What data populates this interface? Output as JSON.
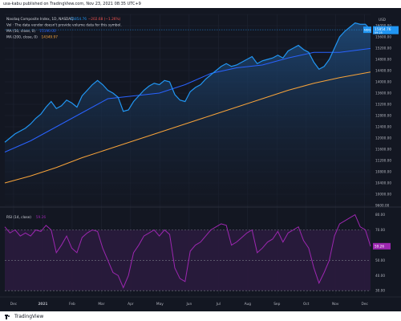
{
  "caption": "usa-kabu published on TradingView.com, Nov 23, 2021 08:35 UTC+9",
  "footer": {
    "brand": "TradingView",
    "logo_icon": "tradingview-logo-icon"
  },
  "colors": {
    "background": "#131722",
    "price_line": "#2196F3",
    "price_fill": "#1E3A5F",
    "ma50": "#2962FF",
    "ma200": "#F7A33A",
    "rsi_line": "#9C27B0",
    "rsi_band": "#2A1B3D",
    "text": "#D1D4DC",
    "tick_text": "#B2B5BE",
    "grid": "#1F2433"
  },
  "chart_data": [
    {
      "type": "area",
      "legend": [
        {
          "text": "Nasdaq Composite Index, 1D, NASDAQ",
          "values": [
            {
              "text": "15854.76",
              "color": "#2196F3"
            },
            {
              "text": "−202.68 (−1.26%)",
              "color": "#EF5350"
            }
          ]
        },
        {
          "text": "Vol · The data vendor doesn't provide volume data for this symbol.",
          "values": []
        },
        {
          "text": "MA (50, close, 0)",
          "values": [
            {
              "text": "15190.00",
              "color": "#2962FF"
            }
          ]
        },
        {
          "text": "MA (200, close, 0)",
          "values": [
            {
              "text": "14349.97",
              "color": "#F7A33A"
            }
          ]
        }
      ],
      "x_labels": [
        "Dec",
        "2021",
        "Feb",
        "Mar",
        "Apr",
        "May",
        "Jun",
        "Jul",
        "Aug",
        "Sep",
        "Oct",
        "Nov",
        "Dec"
      ],
      "y_ticks": [
        9600,
        10000,
        10400,
        10800,
        11200,
        11600,
        12000,
        12400,
        12800,
        13200,
        13600,
        14000,
        14400,
        14800,
        15200,
        15600,
        16000,
        16400
      ],
      "y_tick_labels": [
        "9600.00",
        "10000.00",
        "10400.00",
        "10800.00",
        "11200.00",
        "11600.00",
        "12000.00",
        "12400.00",
        "12800.00",
        "13200.00",
        "13600.00",
        "14000.00",
        "14400.00",
        "14800.00",
        "15200.00",
        "15600.00",
        "16000.00",
        "16400.00"
      ],
      "ylim": [
        9600,
        16400
      ],
      "currency": "USD",
      "last_price_label": "15854.76",
      "last_price_sublabel": "NDQ",
      "secondary_label": "09:25",
      "series": [
        {
          "name": "Nasdaq Composite Index",
          "color": "#2196F3",
          "points": [
            [
              0,
              11850
            ],
            [
              2,
              12000
            ],
            [
              4,
              12150
            ],
            [
              6,
              12250
            ],
            [
              8,
              12350
            ],
            [
              10,
              12500
            ],
            [
              12,
              12700
            ],
            [
              14,
              12850
            ],
            [
              16,
              13100
            ],
            [
              18,
              13300
            ],
            [
              20,
              13050
            ],
            [
              22,
              13150
            ],
            [
              24,
              13350
            ],
            [
              26,
              13250
            ],
            [
              28,
              13100
            ],
            [
              30,
              13500
            ],
            [
              32,
              13700
            ],
            [
              34,
              13900
            ],
            [
              36,
              14050
            ],
            [
              38,
              13900
            ],
            [
              40,
              13700
            ],
            [
              42,
              13600
            ],
            [
              44,
              13450
            ],
            [
              46,
              12950
            ],
            [
              48,
              13000
            ],
            [
              50,
              13300
            ],
            [
              52,
              13500
            ],
            [
              54,
              13700
            ],
            [
              56,
              13850
            ],
            [
              58,
              13950
            ],
            [
              60,
              13900
            ],
            [
              62,
              14050
            ],
            [
              64,
              14000
            ],
            [
              66,
              13550
            ],
            [
              68,
              13350
            ],
            [
              70,
              13300
            ],
            [
              72,
              13650
            ],
            [
              74,
              13800
            ],
            [
              76,
              13900
            ],
            [
              78,
              14100
            ],
            [
              80,
              14250
            ],
            [
              82,
              14400
            ],
            [
              84,
              14550
            ],
            [
              86,
              14650
            ],
            [
              88,
              14550
            ],
            [
              90,
              14600
            ],
            [
              92,
              14700
            ],
            [
              94,
              14800
            ],
            [
              96,
              14900
            ],
            [
              98,
              14650
            ],
            [
              100,
              14750
            ],
            [
              102,
              14800
            ],
            [
              104,
              14850
            ],
            [
              106,
              14950
            ],
            [
              108,
              14850
            ],
            [
              110,
              15100
            ],
            [
              112,
              15200
            ],
            [
              114,
              15300
            ],
            [
              116,
              15150
            ],
            [
              118,
              15050
            ],
            [
              120,
              14700
            ],
            [
              122,
              14450
            ],
            [
              124,
              14550
            ],
            [
              126,
              14800
            ],
            [
              128,
              15200
            ],
            [
              130,
              15600
            ],
            [
              132,
              15800
            ],
            [
              134,
              15950
            ],
            [
              136,
              16100
            ],
            [
              138,
              16050
            ],
            [
              140,
              16050
            ],
            [
              142,
              15854.76
            ]
          ]
        },
        {
          "name": "MA (50, close, 0)",
          "color": "#2962FF",
          "points": [
            [
              0,
              11500
            ],
            [
              10,
              11900
            ],
            [
              20,
              12400
            ],
            [
              30,
              12900
            ],
            [
              40,
              13400
            ],
            [
              50,
              13500
            ],
            [
              60,
              13600
            ],
            [
              70,
              13900
            ],
            [
              80,
              14300
            ],
            [
              90,
              14500
            ],
            [
              100,
              14600
            ],
            [
              110,
              14850
            ],
            [
              120,
              15050
            ],
            [
              130,
              15050
            ],
            [
              142,
              15190
            ]
          ]
        },
        {
          "name": "MA (200, close, 0)",
          "color": "#F7A33A",
          "points": [
            [
              0,
              10400
            ],
            [
              10,
              10650
            ],
            [
              20,
              10950
            ],
            [
              30,
              11300
            ],
            [
              40,
              11600
            ],
            [
              50,
              11900
            ],
            [
              60,
              12200
            ],
            [
              70,
              12500
            ],
            [
              80,
              12800
            ],
            [
              90,
              13100
            ],
            [
              100,
              13400
            ],
            [
              110,
              13700
            ],
            [
              120,
              13950
            ],
            [
              130,
              14150
            ],
            [
              142,
              14349.97
            ]
          ]
        }
      ]
    },
    {
      "type": "line",
      "legend": [
        {
          "text": "RSI (14, close)",
          "values": [
            {
              "text": "59.26",
              "color": "#9C27B0"
            }
          ]
        }
      ],
      "y_ticks": [
        30,
        40,
        50,
        60,
        70,
        80
      ],
      "y_tick_labels": [
        "30.00",
        "40.00",
        "50.00",
        "60.00",
        "70.00",
        "80.00"
      ],
      "ylim": [
        28,
        84
      ],
      "band": [
        30,
        70
      ],
      "last_label": "59.26",
      "series": [
        {
          "name": "RSI (14, close)",
          "color": "#9C27B0",
          "points": [
            [
              0,
              72
            ],
            [
              2,
              68
            ],
            [
              4,
              70
            ],
            [
              6,
              66
            ],
            [
              8,
              68
            ],
            [
              10,
              66
            ],
            [
              12,
              70
            ],
            [
              14,
              69
            ],
            [
              16,
              73
            ],
            [
              18,
              70
            ],
            [
              20,
              55
            ],
            [
              22,
              60
            ],
            [
              24,
              66
            ],
            [
              26,
              58
            ],
            [
              28,
              55
            ],
            [
              30,
              65
            ],
            [
              32,
              68
            ],
            [
              34,
              70
            ],
            [
              36,
              69
            ],
            [
              38,
              58
            ],
            [
              40,
              50
            ],
            [
              42,
              42
            ],
            [
              44,
              40
            ],
            [
              46,
              32
            ],
            [
              48,
              40
            ],
            [
              50,
              55
            ],
            [
              52,
              60
            ],
            [
              54,
              66
            ],
            [
              56,
              68
            ],
            [
              58,
              70
            ],
            [
              60,
              66
            ],
            [
              62,
              70
            ],
            [
              64,
              67
            ],
            [
              66,
              45
            ],
            [
              68,
              38
            ],
            [
              70,
              36
            ],
            [
              72,
              56
            ],
            [
              74,
              60
            ],
            [
              76,
              62
            ],
            [
              78,
              66
            ],
            [
              80,
              70
            ],
            [
              82,
              72
            ],
            [
              84,
              74
            ],
            [
              86,
              73
            ],
            [
              88,
              60
            ],
            [
              90,
              62
            ],
            [
              92,
              65
            ],
            [
              94,
              68
            ],
            [
              96,
              70
            ],
            [
              98,
              55
            ],
            [
              100,
              58
            ],
            [
              102,
              62
            ],
            [
              104,
              64
            ],
            [
              106,
              69
            ],
            [
              108,
              62
            ],
            [
              110,
              68
            ],
            [
              112,
              70
            ],
            [
              114,
              72
            ],
            [
              116,
              63
            ],
            [
              118,
              58
            ],
            [
              120,
              45
            ],
            [
              122,
              35
            ],
            [
              124,
              42
            ],
            [
              126,
              50
            ],
            [
              128,
              66
            ],
            [
              130,
              74
            ],
            [
              132,
              76
            ],
            [
              134,
              78
            ],
            [
              136,
              80
            ],
            [
              138,
              72
            ],
            [
              140,
              70
            ],
            [
              142,
              59.26
            ]
          ]
        }
      ]
    }
  ]
}
